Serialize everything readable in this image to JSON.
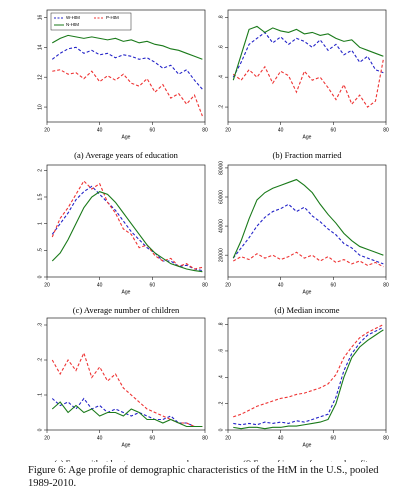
{
  "chart_data": [
    {
      "type": "line",
      "title": "(a) Average years of education",
      "xlabel": "Age",
      "x": [
        22,
        25,
        28,
        31,
        34,
        37,
        40,
        43,
        46,
        49,
        52,
        55,
        58,
        61,
        64,
        67,
        70,
        73,
        76,
        79
      ],
      "xlim": [
        20,
        80
      ],
      "xticks": [
        20,
        40,
        60,
        80
      ],
      "ylim": [
        9,
        16.5
      ],
      "yticks": [
        10,
        12,
        14,
        16
      ],
      "legend": "upper left",
      "series": [
        {
          "name": "W-HtM",
          "color": "#2323c8",
          "linestyle": "dashed",
          "values": [
            13.2,
            13.6,
            13.9,
            14.0,
            13.6,
            13.8,
            13.5,
            13.6,
            13.3,
            13.5,
            13.4,
            13.2,
            13.3,
            13.0,
            12.6,
            12.8,
            12.2,
            12.5,
            11.8,
            11.2
          ]
        },
        {
          "name": "P-HtM",
          "color": "#ee3333",
          "linestyle": "dashed",
          "values": [
            12.4,
            12.5,
            12.2,
            12.3,
            11.9,
            12.4,
            11.7,
            12.1,
            11.8,
            12.2,
            11.6,
            11.4,
            11.9,
            11.0,
            11.5,
            10.6,
            10.9,
            10.2,
            10.8,
            9.4
          ]
        },
        {
          "name": "N-HtM",
          "color": "#1a7a1a",
          "linestyle": "solid",
          "values": [
            14.3,
            14.6,
            14.8,
            14.7,
            14.6,
            14.7,
            14.6,
            14.5,
            14.6,
            14.4,
            14.5,
            14.3,
            14.4,
            14.2,
            14.1,
            13.9,
            13.8,
            13.6,
            13.4,
            13.2
          ]
        }
      ]
    },
    {
      "type": "line",
      "title": "(b) Fraction married",
      "xlabel": "Age",
      "x": [
        22,
        25,
        28,
        31,
        34,
        37,
        40,
        43,
        46,
        49,
        52,
        55,
        58,
        61,
        64,
        67,
        70,
        73,
        76,
        79
      ],
      "xlim": [
        20,
        80
      ],
      "xticks": [
        20,
        40,
        60,
        80
      ],
      "ylim": [
        0.1,
        0.85
      ],
      "yticks": [
        {
          "value": 0.2,
          "label": ".2"
        },
        {
          "value": 0.4,
          "label": ".4"
        },
        {
          "value": 0.6,
          "label": ".6"
        },
        {
          "value": 0.8,
          "label": ".8"
        }
      ],
      "series": [
        {
          "color": "#2323c8",
          "linestyle": "dashed",
          "values": [
            0.4,
            0.5,
            0.62,
            0.66,
            0.7,
            0.63,
            0.67,
            0.62,
            0.66,
            0.64,
            0.6,
            0.65,
            0.58,
            0.62,
            0.55,
            0.58,
            0.5,
            0.54,
            0.45,
            0.43
          ]
        },
        {
          "color": "#ee3333",
          "linestyle": "dashed",
          "values": [
            0.42,
            0.38,
            0.45,
            0.4,
            0.47,
            0.36,
            0.44,
            0.41,
            0.3,
            0.44,
            0.38,
            0.4,
            0.33,
            0.25,
            0.35,
            0.22,
            0.28,
            0.2,
            0.24,
            0.52
          ]
        },
        {
          "color": "#1a7a1a",
          "linestyle": "solid",
          "values": [
            0.38,
            0.55,
            0.72,
            0.74,
            0.7,
            0.73,
            0.71,
            0.7,
            0.72,
            0.69,
            0.7,
            0.68,
            0.69,
            0.66,
            0.64,
            0.65,
            0.6,
            0.58,
            0.56,
            0.54
          ]
        }
      ]
    },
    {
      "type": "line",
      "title": "(c) Average number of children",
      "xlabel": "Age",
      "x": [
        22,
        25,
        28,
        31,
        34,
        37,
        40,
        43,
        46,
        49,
        52,
        55,
        58,
        61,
        64,
        67,
        70,
        73,
        76,
        79
      ],
      "xlim": [
        20,
        80
      ],
      "xticks": [
        20,
        40,
        60,
        80
      ],
      "ylim": [
        0,
        2.1
      ],
      "yticks": [
        0,
        {
          "value": 0.5,
          "label": ".5"
        },
        1,
        1.5,
        2
      ],
      "series": [
        {
          "color": "#2323c8",
          "linestyle": "dashed",
          "values": [
            0.8,
            1.0,
            1.2,
            1.45,
            1.6,
            1.7,
            1.55,
            1.4,
            1.25,
            1.05,
            0.85,
            0.7,
            0.55,
            0.45,
            0.3,
            0.3,
            0.2,
            0.22,
            0.15,
            0.12
          ]
        },
        {
          "color": "#ee3333",
          "linestyle": "dashed",
          "values": [
            0.75,
            1.1,
            1.3,
            1.55,
            1.8,
            1.65,
            1.75,
            1.4,
            1.2,
            0.9,
            0.8,
            0.55,
            0.6,
            0.4,
            0.3,
            0.35,
            0.2,
            0.25,
            0.15,
            0.18
          ]
        },
        {
          "color": "#1a7a1a",
          "linestyle": "solid",
          "values": [
            0.3,
            0.45,
            0.7,
            1.0,
            1.3,
            1.5,
            1.6,
            1.55,
            1.4,
            1.2,
            1.0,
            0.8,
            0.6,
            0.45,
            0.35,
            0.25,
            0.2,
            0.15,
            0.12,
            0.1
          ]
        }
      ]
    },
    {
      "type": "line",
      "title": "(d) Median income",
      "xlabel": "Age",
      "x": [
        22,
        25,
        28,
        31,
        34,
        37,
        40,
        43,
        46,
        49,
        52,
        55,
        58,
        61,
        64,
        67,
        70,
        73,
        76,
        79
      ],
      "xlim": [
        20,
        80
      ],
      "xticks": [
        20,
        40,
        60,
        80
      ],
      "ylim": [
        5000,
        82000
      ],
      "yticks": [
        20000,
        40000,
        60000,
        80000
      ],
      "series": [
        {
          "color": "#2323c8",
          "linestyle": "dashed",
          "values": [
            18000,
            25000,
            32000,
            40000,
            46000,
            50000,
            52000,
            55000,
            50000,
            53000,
            47000,
            43000,
            38000,
            34000,
            28000,
            25000,
            20000,
            18000,
            16000,
            14000
          ]
        },
        {
          "color": "#ee3333",
          "linestyle": "dashed",
          "values": [
            16000,
            19000,
            17000,
            21000,
            18000,
            20000,
            17000,
            19000,
            22000,
            18000,
            20000,
            16000,
            19000,
            15000,
            17000,
            14000,
            16000,
            13000,
            15000,
            12000
          ]
        },
        {
          "color": "#1a7a1a",
          "linestyle": "solid",
          "values": [
            18000,
            30000,
            45000,
            58000,
            63000,
            66000,
            68000,
            70000,
            72000,
            68000,
            63000,
            55000,
            48000,
            42000,
            35000,
            30000,
            26000,
            24000,
            22000,
            20000
          ]
        }
      ]
    },
    {
      "type": "line",
      "title": "(e) Frac. with at least one unemp. member",
      "xlabel": "Age",
      "x": [
        22,
        25,
        28,
        31,
        34,
        37,
        40,
        43,
        46,
        49,
        52,
        55,
        58,
        61,
        64,
        67,
        70,
        73,
        76,
        79
      ],
      "xlim": [
        20,
        80
      ],
      "xticks": [
        20,
        40,
        60,
        80
      ],
      "ylim": [
        0,
        0.32
      ],
      "yticks": [
        0,
        {
          "value": 0.1,
          "label": ".1"
        },
        {
          "value": 0.2,
          "label": ".2"
        },
        {
          "value": 0.3,
          "label": ".3"
        }
      ],
      "series": [
        {
          "color": "#2323c8",
          "linestyle": "dashed",
          "values": [
            0.09,
            0.07,
            0.08,
            0.06,
            0.09,
            0.06,
            0.07,
            0.05,
            0.06,
            0.05,
            0.04,
            0.05,
            0.04,
            0.03,
            0.03,
            0.04,
            0.02,
            0.02,
            0.01,
            0.01
          ]
        },
        {
          "color": "#ee3333",
          "linestyle": "dashed",
          "values": [
            0.2,
            0.16,
            0.2,
            0.17,
            0.22,
            0.15,
            0.18,
            0.14,
            0.16,
            0.12,
            0.1,
            0.08,
            0.06,
            0.05,
            0.04,
            0.03,
            0.02,
            0.02,
            0.01,
            0.01
          ]
        },
        {
          "color": "#1a7a1a",
          "linestyle": "solid",
          "values": [
            0.06,
            0.08,
            0.05,
            0.07,
            0.05,
            0.06,
            0.04,
            0.05,
            0.05,
            0.04,
            0.06,
            0.05,
            0.03,
            0.03,
            0.02,
            0.03,
            0.02,
            0.01,
            0.01,
            0.01
          ]
        }
      ]
    },
    {
      "type": "line",
      "title": "(f) Frac. of income from gov. benefits",
      "xlabel": "Age",
      "x": [
        22,
        25,
        28,
        31,
        34,
        37,
        40,
        43,
        46,
        49,
        52,
        55,
        58,
        61,
        64,
        67,
        70,
        73,
        76,
        79
      ],
      "xlim": [
        20,
        80
      ],
      "xticks": [
        20,
        40,
        60,
        80
      ],
      "ylim": [
        0,
        0.85
      ],
      "yticks": [
        0,
        {
          "value": 0.2,
          "label": ".2"
        },
        {
          "value": 0.4,
          "label": ".4"
        },
        {
          "value": 0.6,
          "label": ".6"
        },
        {
          "value": 0.8,
          "label": ".8"
        }
      ],
      "series": [
        {
          "color": "#2323c8",
          "linestyle": "dashed",
          "values": [
            0.05,
            0.04,
            0.05,
            0.04,
            0.06,
            0.05,
            0.06,
            0.05,
            0.07,
            0.06,
            0.08,
            0.1,
            0.12,
            0.25,
            0.45,
            0.58,
            0.66,
            0.72,
            0.75,
            0.78
          ]
        },
        {
          "color": "#ee3333",
          "linestyle": "dashed",
          "values": [
            0.1,
            0.12,
            0.15,
            0.18,
            0.2,
            0.22,
            0.24,
            0.25,
            0.27,
            0.28,
            0.3,
            0.32,
            0.35,
            0.42,
            0.55,
            0.63,
            0.7,
            0.74,
            0.77,
            0.8
          ]
        },
        {
          "color": "#1a7a1a",
          "linestyle": "solid",
          "values": [
            0.02,
            0.01,
            0.02,
            0.02,
            0.01,
            0.02,
            0.02,
            0.03,
            0.03,
            0.04,
            0.05,
            0.06,
            0.08,
            0.2,
            0.4,
            0.55,
            0.63,
            0.68,
            0.72,
            0.76
          ]
        }
      ]
    }
  ],
  "caption": "Figure 6: Age profile of demographic characteristics of the HtM in the U.S., pooled 1989-2010."
}
